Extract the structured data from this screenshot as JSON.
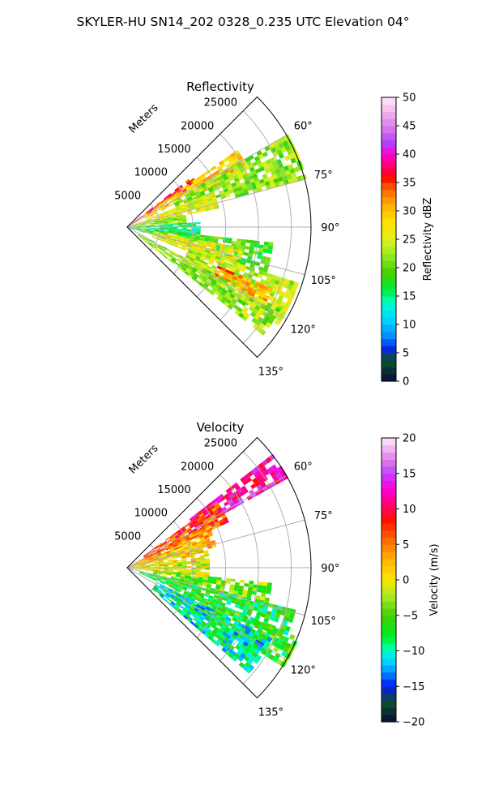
{
  "figure": {
    "suptitle": "SKYLER-HU  SN14_202  0328_0.235 UTC Elevation 04°"
  },
  "chart_data": [
    {
      "type": "heatmap",
      "projection": "polar-sector",
      "title": "Reflectivity",
      "radial_label": "Meters",
      "radial_ticks": [
        5000,
        10000,
        15000,
        20000,
        25000
      ],
      "radial_tick_labels": [
        "5000",
        "10000",
        "15000",
        "20000",
        "25000"
      ],
      "r_max": 28000,
      "angular_range_deg": [
        45,
        135
      ],
      "angular_ticks_deg": [
        60,
        75,
        90,
        105,
        120,
        135
      ],
      "angular_tick_labels": [
        "60°",
        "75°",
        "90°",
        "105°",
        "120°",
        "135°"
      ],
      "grid": true,
      "colorbar": {
        "label": "Reflectivity dBZ",
        "min": 0,
        "max": 50,
        "ticks": [
          0,
          5,
          10,
          15,
          20,
          25,
          30,
          35,
          40,
          45,
          50
        ],
        "tick_labels": [
          "0",
          "5",
          "10",
          "15",
          "20",
          "25",
          "30",
          "35",
          "40",
          "45",
          "50"
        ],
        "stops": [
          {
            "v": 0,
            "c": "#0a0a40"
          },
          {
            "v": 2,
            "c": "#0a3030"
          },
          {
            "v": 4,
            "c": "#0a5a30"
          },
          {
            "v": 5,
            "c": "#1020a0"
          },
          {
            "v": 6,
            "c": "#0030ff"
          },
          {
            "v": 8,
            "c": "#0090ff"
          },
          {
            "v": 11,
            "c": "#00d8ff"
          },
          {
            "v": 14,
            "c": "#00ffc8"
          },
          {
            "v": 16,
            "c": "#00ee40"
          },
          {
            "v": 19,
            "c": "#40d000"
          },
          {
            "v": 22,
            "c": "#90e820"
          },
          {
            "v": 25,
            "c": "#e0f020"
          },
          {
            "v": 28,
            "c": "#ffe000"
          },
          {
            "v": 31,
            "c": "#ffb000"
          },
          {
            "v": 34,
            "c": "#ff6000"
          },
          {
            "v": 36,
            "c": "#ff0000"
          },
          {
            "v": 38,
            "c": "#ff0070"
          },
          {
            "v": 40,
            "c": "#ff00d0"
          },
          {
            "v": 42,
            "c": "#b040ff"
          },
          {
            "v": 45,
            "c": "#e080e8"
          },
          {
            "v": 48,
            "c": "#f4c0f0"
          },
          {
            "v": 50,
            "c": "#fde8fa"
          }
        ]
      },
      "echo_regions": [
        {
          "az": [
            52,
            58
          ],
          "r": [
            0,
            12000
          ],
          "value": 36
        },
        {
          "az": [
            55,
            65
          ],
          "r": [
            3000,
            20000
          ],
          "value": 29
        },
        {
          "az": [
            60,
            74
          ],
          "r": [
            8000,
            28000
          ],
          "value": 22
        },
        {
          "az": [
            68,
            78
          ],
          "r": [
            1000,
            14000
          ],
          "value": 26
        },
        {
          "az": [
            78,
            88
          ],
          "r": [
            0,
            9000
          ],
          "value": 21
        },
        {
          "az": [
            86,
            98
          ],
          "r": [
            0,
            11000
          ],
          "value": 15
        },
        {
          "az": [
            96,
            108
          ],
          "r": [
            0,
            22000
          ],
          "value": 19
        },
        {
          "az": [
            100,
            112
          ],
          "r": [
            4000,
            18000
          ],
          "value": 26
        },
        {
          "az": [
            108,
            122
          ],
          "r": [
            10000,
            27000
          ],
          "value": 24
        },
        {
          "az": [
            113,
            120
          ],
          "r": [
            15000,
            24000
          ],
          "value": 32
        },
        {
          "az": [
            118,
            128
          ],
          "r": [
            2000,
            26000
          ],
          "value": 22
        }
      ]
    },
    {
      "type": "heatmap",
      "projection": "polar-sector",
      "title": "Velocity",
      "radial_label": "Meters",
      "radial_ticks": [
        5000,
        10000,
        15000,
        20000,
        25000
      ],
      "radial_tick_labels": [
        "5000",
        "10000",
        "15000",
        "20000",
        "25000"
      ],
      "r_max": 28000,
      "angular_range_deg": [
        45,
        135
      ],
      "angular_ticks_deg": [
        60,
        75,
        90,
        105,
        120,
        135
      ],
      "angular_tick_labels": [
        "60°",
        "75°",
        "90°",
        "105°",
        "120°",
        "135°"
      ],
      "grid": true,
      "colorbar": {
        "label": "Velocity (m/s)",
        "min": -20,
        "max": 20,
        "ticks": [
          -20,
          -15,
          -10,
          -5,
          0,
          5,
          10,
          15,
          20
        ],
        "tick_labels": [
          "−20",
          "−15",
          "−10",
          "−5",
          "0",
          "5",
          "10",
          "15",
          "20"
        ],
        "stops": [
          {
            "v": -20,
            "c": "#0a0a40"
          },
          {
            "v": -18.5,
            "c": "#0a3030"
          },
          {
            "v": -17,
            "c": "#0a5a30"
          },
          {
            "v": -16,
            "c": "#1020a0"
          },
          {
            "v": -14.5,
            "c": "#0030ff"
          },
          {
            "v": -13,
            "c": "#0090ff"
          },
          {
            "v": -11,
            "c": "#00e8ff"
          },
          {
            "v": -9.5,
            "c": "#00ffa0"
          },
          {
            "v": -8,
            "c": "#00ee20"
          },
          {
            "v": -5,
            "c": "#40d000"
          },
          {
            "v": -2.5,
            "c": "#a0e820"
          },
          {
            "v": 0,
            "c": "#ffe800"
          },
          {
            "v": 3,
            "c": "#ffb000"
          },
          {
            "v": 6,
            "c": "#ff6000"
          },
          {
            "v": 8.5,
            "c": "#ff1000"
          },
          {
            "v": 11,
            "c": "#ff0080"
          },
          {
            "v": 13,
            "c": "#ff00e0"
          },
          {
            "v": 15,
            "c": "#c040ff"
          },
          {
            "v": 17,
            "c": "#e080e8"
          },
          {
            "v": 20,
            "c": "#fde8fa"
          }
        ]
      },
      "echo_regions": [
        {
          "az": [
            52,
            60
          ],
          "r": [
            12000,
            28000
          ],
          "value": 12
        },
        {
          "az": [
            54,
            66
          ],
          "r": [
            3000,
            17000
          ],
          "value": 7
        },
        {
          "az": [
            62,
            76
          ],
          "r": [
            0,
            14000
          ],
          "value": 4
        },
        {
          "az": [
            70,
            86
          ],
          "r": [
            0,
            12000
          ],
          "value": 1
        },
        {
          "az": [
            84,
            98
          ],
          "r": [
            0,
            12000
          ],
          "value": -1
        },
        {
          "az": [
            96,
            106
          ],
          "r": [
            4000,
            22000
          ],
          "value": -4
        },
        {
          "az": [
            104,
            114
          ],
          "r": [
            2000,
            26000
          ],
          "value": -7
        },
        {
          "az": [
            112,
            122
          ],
          "r": [
            8000,
            28000
          ],
          "value": -6
        },
        {
          "az": [
            116,
            130
          ],
          "r": [
            5000,
            24000
          ],
          "value": -10
        }
      ]
    }
  ]
}
